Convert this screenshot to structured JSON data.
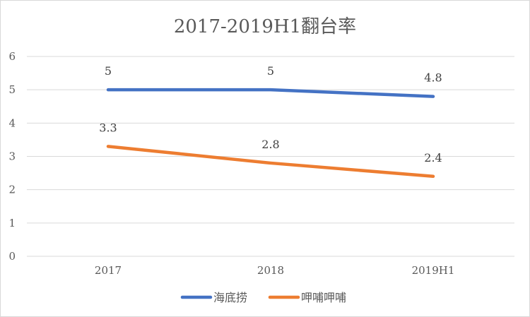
{
  "chart_data": {
    "type": "line",
    "title": "2017-2019H1翻台率",
    "categories": [
      "2017",
      "2018",
      "2019H1"
    ],
    "ylim": [
      0,
      6
    ],
    "yticks": [
      "0",
      "1",
      "2",
      "3",
      "4",
      "5",
      "6"
    ],
    "grid": true,
    "legend_position": "bottom",
    "series": [
      {
        "name": "海底捞",
        "values": [
          5,
          5,
          4.8
        ],
        "labels": [
          "5",
          "5",
          "4.8"
        ],
        "color": "#4472C4"
      },
      {
        "name": "呷哺呷哺",
        "values": [
          3.3,
          2.8,
          2.4
        ],
        "labels": [
          "3.3",
          "2.8",
          "2.4"
        ],
        "color": "#ED7D31"
      }
    ]
  }
}
